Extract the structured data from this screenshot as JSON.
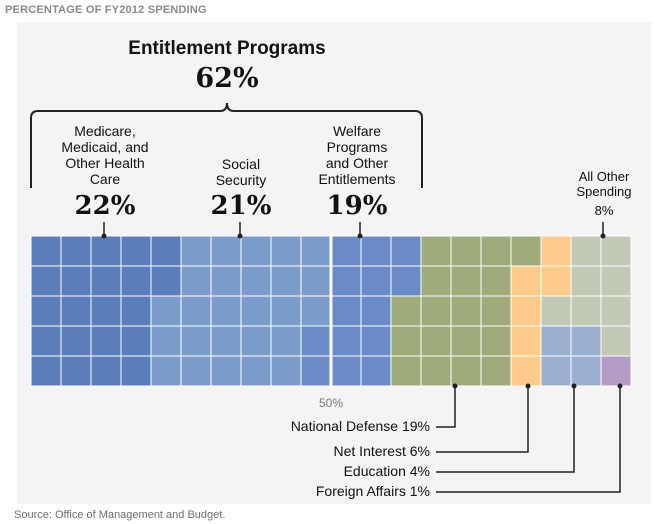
{
  "header": "PERCENTAGE OF FY2012 SPENDING",
  "source": "Source: Office of Management and Budget.",
  "chart_data": {
    "type": "waffle",
    "grid": {
      "columns": 20,
      "rows": 5,
      "unit_percent": 1
    },
    "group": {
      "title": "Entitlement Programs",
      "value_label": "62%",
      "value": 62
    },
    "midpoint_label": "50%",
    "categories": [
      {
        "key": "medicare",
        "lines": [
          "Medicare,",
          "Medicaid, and",
          "Other Health",
          "Care"
        ],
        "value": 22,
        "value_label": "22%",
        "color": "#5b7dbb",
        "in_group": true
      },
      {
        "key": "social_security",
        "lines": [
          "Social",
          "Security"
        ],
        "value": 21,
        "value_label": "21%",
        "color": "#7c9ccc",
        "in_group": true
      },
      {
        "key": "welfare",
        "lines": [
          "Welfare",
          "Programs",
          "and Other",
          "Entitlements"
        ],
        "value": 19,
        "value_label": "19%",
        "color": "#6b8bc7",
        "in_group": true
      },
      {
        "key": "defense",
        "label": "National Defense 19%",
        "value": 19,
        "color": "#9eab7b",
        "in_group": false
      },
      {
        "key": "interest",
        "label": "Net Interest 6%",
        "value": 6,
        "color": "#ffcb8a",
        "in_group": false
      },
      {
        "key": "education",
        "label": "Education 4%",
        "value": 4,
        "color": "#9aafcf",
        "in_group": false
      },
      {
        "key": "other",
        "lines": [
          "All Other",
          "Spending"
        ],
        "value": 8,
        "value_label": "8%",
        "color": "#c2c9b4",
        "in_group": false
      },
      {
        "key": "foreign",
        "label": "Foreign Affairs 1%",
        "value": 1,
        "color": "#b39dc6",
        "in_group": false
      }
    ],
    "colors": {
      "background": "#f4f4f4",
      "gridline": "#ffffff",
      "leader": "#222222",
      "text": "#111111",
      "muted": "#6e6e6e"
    }
  }
}
